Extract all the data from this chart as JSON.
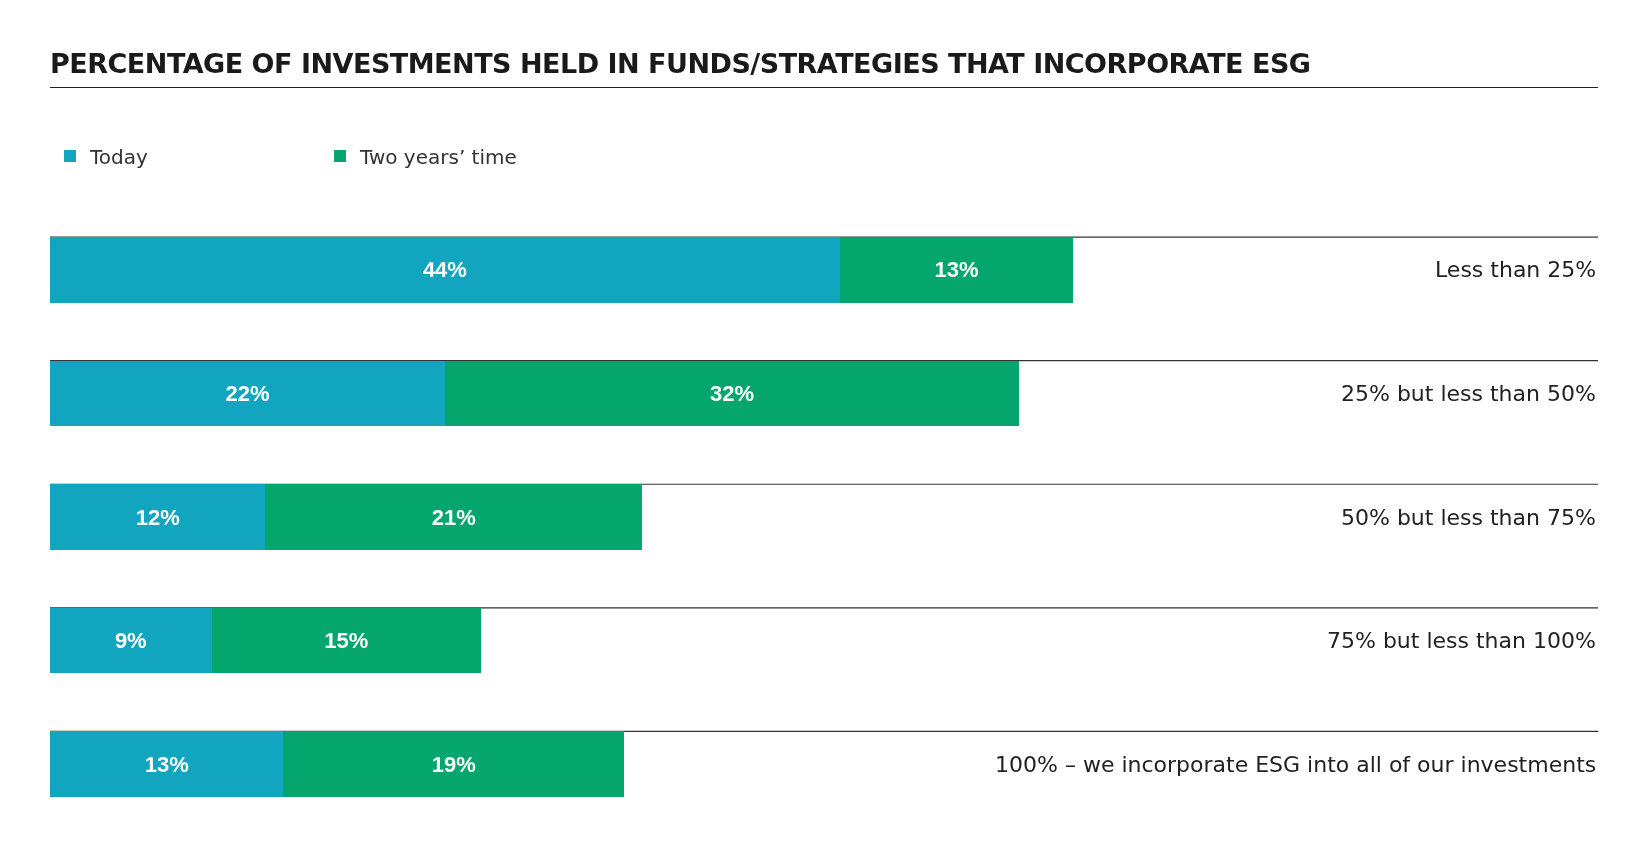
{
  "chart_data": {
    "type": "bar",
    "title": "PERCENTAGE OF INVESTMENTS HELD IN FUNDS/STRATEGIES THAT INCORPORATE ESG",
    "orientation": "horizontal",
    "stacked": true,
    "legend": "top left",
    "categories": [
      "Less than 25%",
      "25% but less than 50%",
      "50% but less than 75%",
      "75% but less than 100%",
      "100% – we incorporate ESG into all of our investments"
    ],
    "series": [
      {
        "name": "Today",
        "color": "#12a5bf",
        "values": [
          44,
          22,
          12,
          9,
          13
        ],
        "value_labels": [
          "44%",
          "22%",
          "12%",
          "9%",
          "13%"
        ]
      },
      {
        "name": "Two years’ time",
        "color": "#04a66e",
        "values": [
          13,
          32,
          21,
          15,
          19
        ],
        "value_labels": [
          "13%",
          "32%",
          "21%",
          "15%",
          "19%"
        ]
      }
    ]
  }
}
